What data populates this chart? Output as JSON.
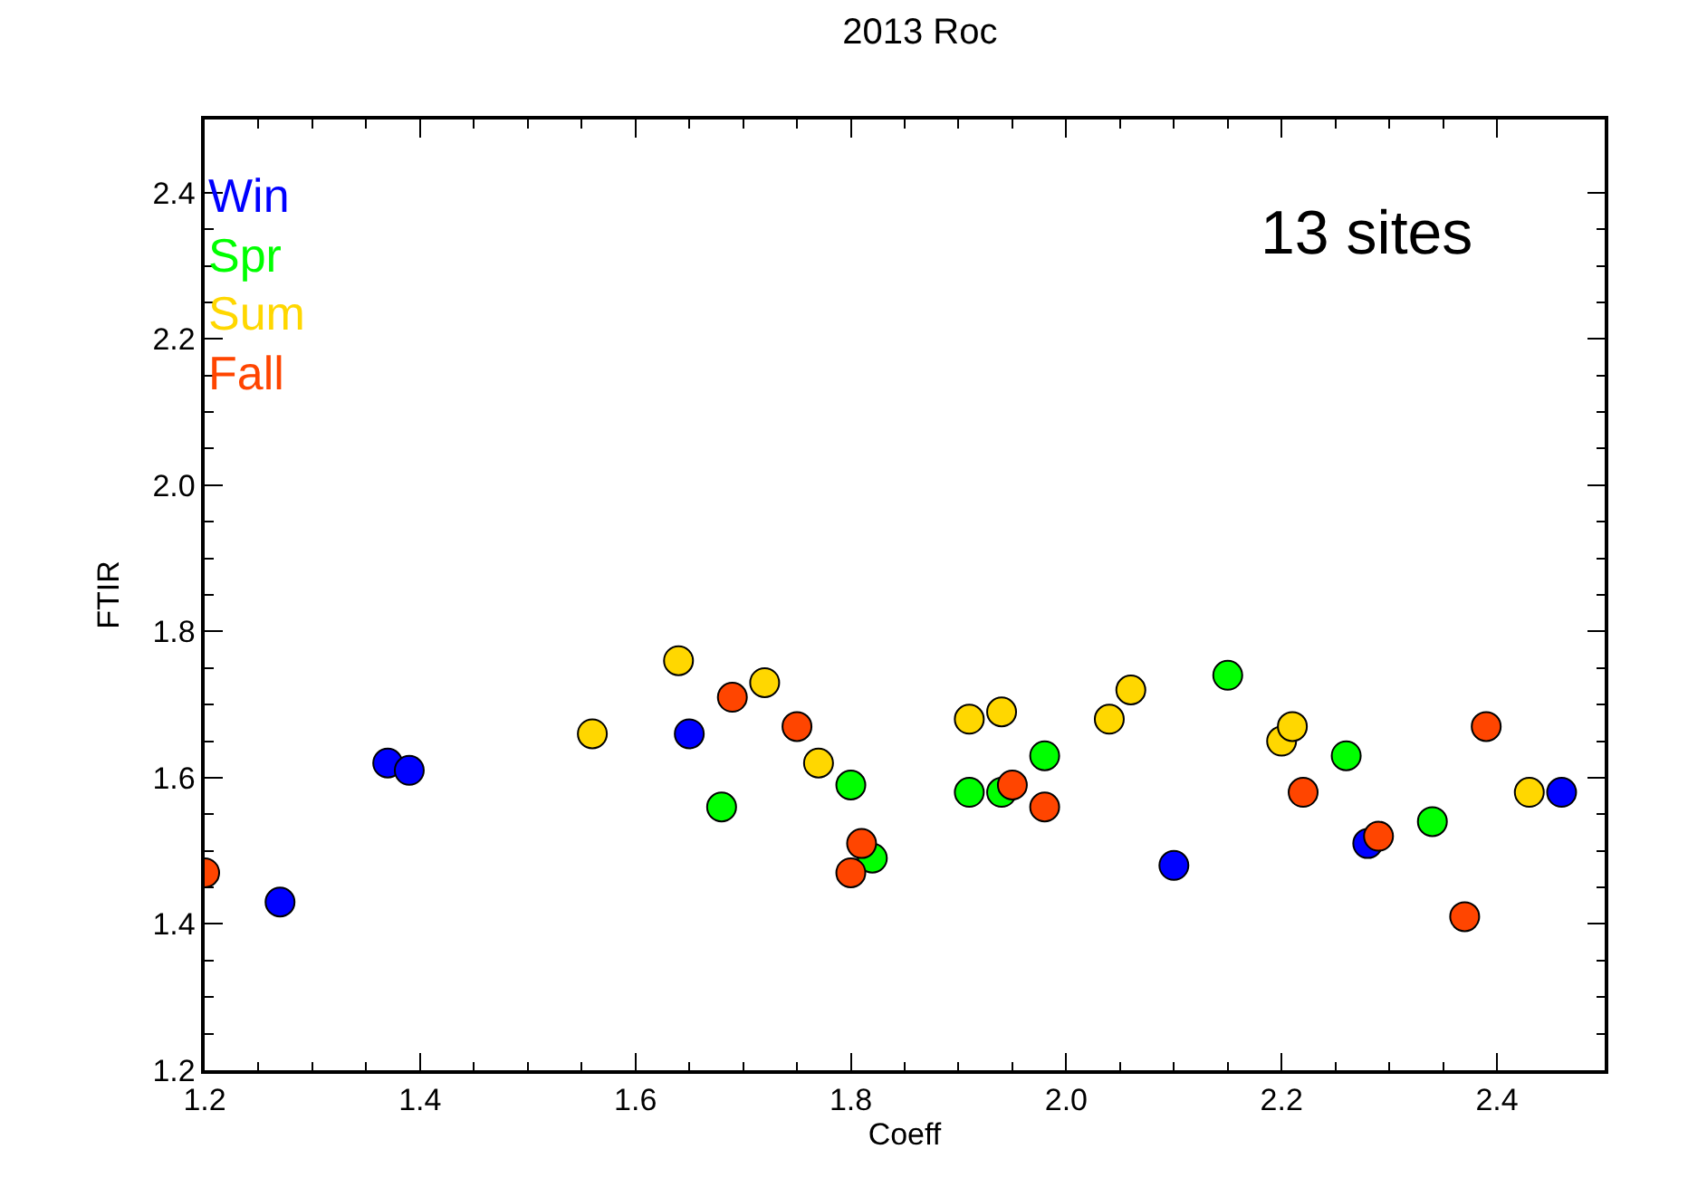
{
  "chart_data": {
    "type": "scatter",
    "title": "2013 Roc",
    "xlabel": "Coeff",
    "ylabel": "FTIR",
    "annotations": [
      "13 sites"
    ],
    "xlim": [
      1.2,
      2.5
    ],
    "ylim": [
      1.2,
      2.5
    ],
    "xticks": [
      1.2,
      1.4,
      1.6,
      1.8,
      {
        "value": 2.0,
        "label": "2.0"
      },
      2.2,
      2.4
    ],
    "yticks": [
      1.2,
      1.4,
      1.6,
      1.8,
      {
        "value": 2.0,
        "label": "2.0"
      },
      2.2,
      2.4
    ],
    "legend": "top left",
    "marker": "circle",
    "series": [
      {
        "name": "Win",
        "color": "#0000ff",
        "x": [
          1.27,
          1.37,
          1.39,
          1.65,
          2.1,
          2.28,
          2.46
        ],
        "values": [
          1.43,
          1.62,
          1.61,
          1.66,
          1.48,
          1.51,
          1.58
        ]
      },
      {
        "name": "Spr",
        "color": "#00ff00",
        "x": [
          1.68,
          1.8,
          1.82,
          1.91,
          1.94,
          1.98,
          2.15,
          2.26,
          2.34
        ],
        "values": [
          1.56,
          1.59,
          1.49,
          1.58,
          1.58,
          1.63,
          1.74,
          1.63,
          1.54
        ]
      },
      {
        "name": "Sum",
        "color": "#ffd700",
        "x": [
          1.56,
          1.64,
          1.72,
          1.77,
          1.91,
          1.94,
          2.04,
          2.06,
          2.2,
          2.21,
          2.43
        ],
        "values": [
          1.66,
          1.76,
          1.73,
          1.62,
          1.68,
          1.69,
          1.68,
          1.72,
          1.65,
          1.67,
          1.58
        ]
      },
      {
        "name": "Fall",
        "color": "#ff4500",
        "x": [
          1.2,
          1.69,
          1.75,
          1.8,
          1.81,
          1.95,
          1.98,
          2.22,
          2.29,
          2.37,
          2.39
        ],
        "values": [
          1.47,
          1.71,
          1.67,
          1.47,
          1.51,
          1.59,
          1.56,
          1.58,
          1.52,
          1.41,
          1.67
        ]
      }
    ]
  }
}
